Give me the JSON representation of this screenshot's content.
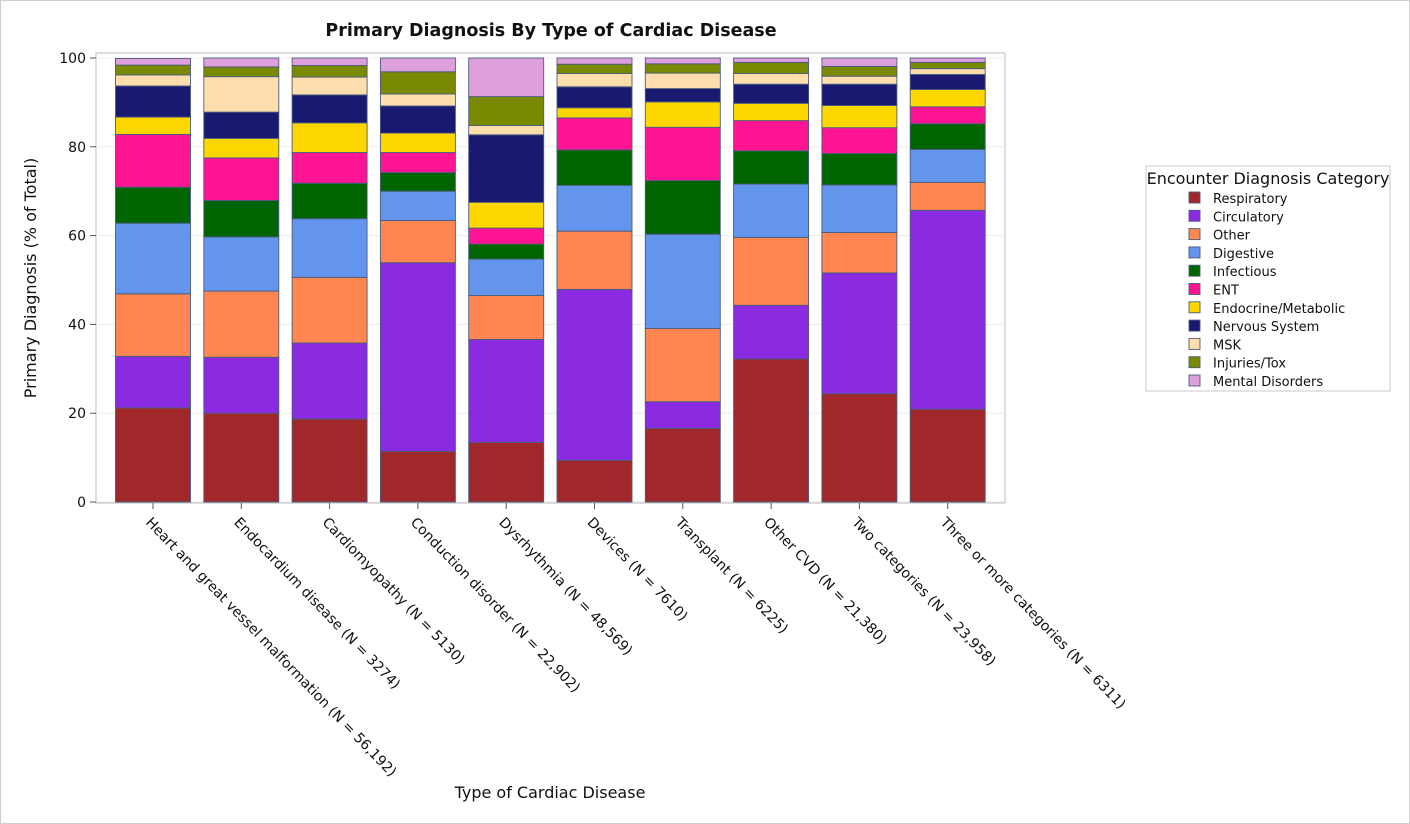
{
  "chart_data": {
    "type": "bar",
    "stacked": true,
    "title": "Primary Diagnosis By Type of Cardiac Disease",
    "xlabel": "Type of Cardiac Disease",
    "ylabel": "Primary Diagnosis (% of Total)",
    "ylim": [
      0,
      100
    ],
    "yticks": [
      "0",
      "20",
      "40",
      "60",
      "80",
      "100"
    ],
    "grid": true,
    "legend_title": "Encounter Diagnosis Category",
    "legend_position": "right",
    "categories": [
      "Heart and great vessel malformation (N = 56,192)",
      "Endocardium disease (N = 3274)",
      "Cardiomyopathy (N = 5130)",
      "Conduction disorder (N = 22,902)",
      "Dysrhythmia (N = 48,569)",
      "Devices (N = 7610)",
      "Transplant (N = 6225)",
      "Other CVD (N = 21,380)",
      "Two categories (N = 23,958)",
      "Three or more categories (N = 6311)"
    ],
    "series": [
      {
        "name": "Respiratory",
        "color": "#A0282B",
        "values": [
          21.2,
          20.0,
          18.7,
          11.4,
          13.4,
          9.4,
          16.6,
          32.2,
          24.4,
          20.9
        ]
      },
      {
        "name": "Circulatory",
        "color": "#8A2BE2",
        "values": [
          11.6,
          12.6,
          17.1,
          42.5,
          23.2,
          38.5,
          6.0,
          12.1,
          27.2,
          44.8
        ]
      },
      {
        "name": "Other",
        "color": "#FF8551",
        "values": [
          14.1,
          14.9,
          14.8,
          9.5,
          9.9,
          13.1,
          16.5,
          15.3,
          9.1,
          6.3
        ]
      },
      {
        "name": "Digestive",
        "color": "#6495ED",
        "values": [
          15.9,
          12.2,
          13.2,
          6.6,
          8.2,
          10.3,
          21.2,
          12.0,
          10.7,
          7.4
        ]
      },
      {
        "name": "Infectious",
        "color": "#006400",
        "values": [
          8.1,
          8.2,
          8.0,
          4.2,
          3.4,
          8.0,
          12.1,
          7.5,
          7.1,
          5.8
        ]
      },
      {
        "name": "ENT",
        "color": "#FF1493",
        "values": [
          11.9,
          9.6,
          6.9,
          4.5,
          3.6,
          7.2,
          12.0,
          6.8,
          5.8,
          3.8
        ]
      },
      {
        "name": "Endocrine/Metabolic",
        "color": "#FFD700",
        "values": [
          3.9,
          4.4,
          6.7,
          4.4,
          5.8,
          2.3,
          5.7,
          3.9,
          5.0,
          3.9
        ]
      },
      {
        "name": "Nervous System",
        "color": "#191970",
        "values": [
          7.0,
          5.9,
          6.3,
          6.1,
          15.2,
          4.7,
          3.0,
          4.3,
          4.8,
          3.4
        ]
      },
      {
        "name": "MSK",
        "color": "#FFDEAD",
        "values": [
          2.5,
          8.0,
          4.0,
          2.7,
          2.1,
          3.0,
          3.5,
          2.4,
          1.8,
          1.3
        ]
      },
      {
        "name": "Injuries/Tox",
        "color": "#7A8A00",
        "values": [
          2.2,
          2.2,
          2.6,
          5.0,
          6.5,
          2.1,
          2.1,
          2.5,
          2.2,
          1.4
        ]
      },
      {
        "name": "Mental Disorders",
        "color": "#DDA0DD",
        "values": [
          1.5,
          2.0,
          1.7,
          3.1,
          8.7,
          1.4,
          1.3,
          1.0,
          1.9,
          1.0
        ]
      }
    ]
  }
}
